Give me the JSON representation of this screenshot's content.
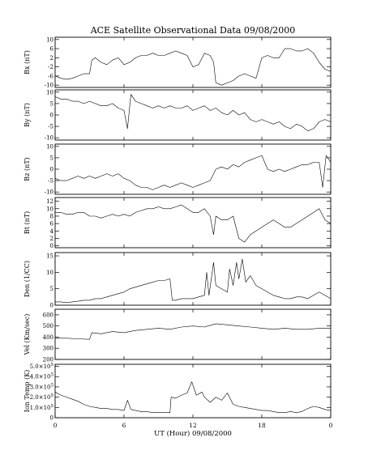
{
  "chart_data": {
    "title": "ACE Satellite Observational Data   09/08/2000",
    "xlabel": "UT (Hour)   09/08/2000",
    "x_ticks": [
      "0",
      "6",
      "12",
      "18",
      "0"
    ],
    "xlim": [
      0,
      24
    ],
    "grid": false,
    "panels": [
      {
        "ylabel": "Bx (nT)",
        "type": "line",
        "ylim": [
          -11,
          11
        ],
        "y_ticks": [
          {
            "v": 10,
            "t": "10"
          },
          {
            "v": 6,
            "t": "6"
          },
          {
            "v": 2,
            "t": "2"
          },
          {
            "v": -2,
            "t": "-2"
          },
          {
            "v": -6,
            "t": "-6"
          },
          {
            "v": -10,
            "t": "-10"
          }
        ],
        "x": [
          0,
          0.5,
          1,
          1.5,
          2,
          2.5,
          3,
          3.2,
          3.5,
          4,
          4.5,
          5,
          5.5,
          6,
          6.5,
          7,
          7.5,
          8,
          8.5,
          9,
          9.5,
          10,
          10.5,
          11,
          11.5,
          12,
          12.5,
          13,
          13.5,
          13.8,
          14,
          14.5,
          15,
          15.5,
          16,
          16.5,
          17,
          17.5,
          18,
          18.5,
          19,
          19.5,
          20,
          20.5,
          21,
          21.5,
          22,
          22.5,
          23,
          23.5,
          24
        ],
        "y": [
          -6,
          -7,
          -7.5,
          -7,
          -6,
          -5,
          -5,
          1,
          2,
          0,
          -1,
          1,
          2,
          -1,
          0,
          2,
          3,
          3,
          4,
          3,
          3,
          4,
          5,
          4,
          3,
          -2,
          -1,
          4,
          3,
          0,
          -9,
          -10,
          -9,
          -8,
          -6,
          -5,
          -6,
          -7,
          2,
          3,
          2,
          2,
          6,
          6,
          5,
          5,
          6,
          4,
          0,
          -3,
          -4
        ]
      },
      {
        "ylabel": "By (nT)",
        "type": "line",
        "ylim": [
          -11,
          11
        ],
        "y_ticks": [
          {
            "v": 10,
            "t": "10"
          },
          {
            "v": 5,
            "t": "5"
          },
          {
            "v": 0,
            "t": "0"
          },
          {
            "v": -5,
            "t": "-5"
          },
          {
            "v": -10,
            "t": "-10"
          }
        ],
        "x": [
          0,
          0.5,
          1,
          1.5,
          2,
          2.5,
          3,
          3.5,
          4,
          4.5,
          5,
          5.5,
          6,
          6.3,
          6.6,
          7,
          7.5,
          8,
          8.5,
          9,
          9.5,
          10,
          10.5,
          11,
          11.5,
          12,
          12.5,
          13,
          13.5,
          14,
          14.5,
          15,
          15.5,
          16,
          16.5,
          17,
          17.5,
          18,
          18.5,
          19,
          19.5,
          20,
          20.5,
          21,
          21.5,
          22,
          22.5,
          23,
          23.5,
          24
        ],
        "y": [
          8,
          7,
          7,
          6,
          6,
          5,
          6,
          5,
          4,
          4,
          5,
          3,
          2,
          -6,
          9,
          6,
          5,
          4,
          3,
          4,
          3,
          4,
          3,
          3,
          4,
          2,
          3,
          4,
          2,
          3,
          1,
          0,
          2,
          0,
          1,
          -2,
          -3,
          -2,
          -3,
          -4,
          -3,
          -5,
          -6,
          -4,
          -5,
          -7,
          -6,
          -3,
          -2,
          -3
        ]
      },
      {
        "ylabel": "Bz (nT)",
        "type": "line",
        "ylim": [
          -11,
          11
        ],
        "y_ticks": [
          {
            "v": 10,
            "t": "10"
          },
          {
            "v": 5,
            "t": "5"
          },
          {
            "v": 0,
            "t": "0"
          },
          {
            "v": -5,
            "t": "-5"
          },
          {
            "v": -10,
            "t": "-10"
          }
        ],
        "x": [
          0,
          0.5,
          1,
          1.5,
          2,
          2.5,
          3,
          3.5,
          4,
          4.5,
          5,
          5.5,
          6,
          6.5,
          7,
          7.5,
          8,
          8.5,
          9,
          9.5,
          10,
          10.5,
          11,
          11.5,
          12,
          12.5,
          13,
          13.5,
          14,
          14.5,
          15,
          15.5,
          16,
          16.5,
          17,
          17.5,
          18,
          18.5,
          19,
          19.5,
          20,
          20.5,
          21,
          21.5,
          22,
          22.5,
          23,
          23.3,
          23.6,
          24
        ],
        "y": [
          -4,
          -5,
          -5,
          -4,
          -3,
          -4,
          -3,
          -4,
          -3,
          -2,
          -3,
          -2,
          -4,
          -5,
          -7,
          -8,
          -8,
          -9,
          -8,
          -7,
          -8,
          -7,
          -6,
          -7,
          -8,
          -7,
          -6,
          -5,
          0,
          1,
          0,
          2,
          1,
          3,
          4,
          5,
          6,
          0,
          -1,
          0,
          -1,
          0,
          1,
          2,
          2,
          3,
          3,
          -8,
          6,
          3
        ]
      },
      {
        "ylabel": "Bt (nT)",
        "type": "line",
        "ylim": [
          -0.5,
          13
        ],
        "y_ticks": [
          {
            "v": 12,
            "t": "12"
          },
          {
            "v": 10,
            "t": "10"
          },
          {
            "v": 8,
            "t": "8"
          },
          {
            "v": 6,
            "t": "6"
          },
          {
            "v": 4,
            "t": "4"
          },
          {
            "v": 2,
            "t": "2"
          },
          {
            "v": 0,
            "t": "0"
          }
        ],
        "x": [
          0,
          0.5,
          1,
          1.5,
          2,
          2.5,
          3,
          3.5,
          4,
          4.5,
          5,
          5.5,
          6,
          6.5,
          7,
          7.5,
          8,
          8.5,
          9,
          9.5,
          10,
          10.5,
          11,
          11.5,
          12,
          12.5,
          13,
          13.5,
          13.8,
          14,
          14.5,
          15,
          15.5,
          16,
          16.5,
          17,
          17.5,
          18,
          18.5,
          19,
          19.5,
          20,
          20.5,
          21,
          21.5,
          22,
          22.5,
          23,
          23.5,
          24
        ],
        "y": [
          9,
          9,
          8.5,
          8.5,
          9,
          9,
          8,
          8,
          7.5,
          8,
          8.5,
          8,
          8.5,
          8,
          9,
          9.5,
          10,
          10,
          10.5,
          10,
          10,
          10.5,
          11,
          10,
          9,
          9,
          10,
          8,
          3,
          8,
          7,
          7,
          8,
          2,
          1,
          3,
          4,
          5,
          6,
          7,
          6,
          5,
          5,
          6,
          7,
          8,
          9,
          10,
          7,
          6
        ]
      },
      {
        "ylabel": "Den (1/CC)",
        "type": "line",
        "ylim": [
          0,
          16
        ],
        "y_ticks": [
          {
            "v": 15,
            "t": "15"
          },
          {
            "v": 10,
            "t": "10"
          },
          {
            "v": 5,
            "t": "5"
          },
          {
            "v": 0,
            "t": "0"
          }
        ],
        "x": [
          0,
          0.5,
          1,
          1.5,
          2,
          2.5,
          3,
          3.5,
          4,
          4.5,
          5,
          5.5,
          6,
          6.5,
          7,
          7.5,
          8,
          8.5,
          9,
          9.5,
          10,
          10.2,
          10.5,
          11,
          11.5,
          12,
          12.5,
          13,
          13.2,
          13.4,
          13.8,
          14,
          14.5,
          15,
          15.2,
          15.5,
          15.8,
          16,
          16.3,
          16.6,
          17,
          17.5,
          18,
          18.5,
          19,
          19.5,
          20,
          20.5,
          21,
          21.5,
          22,
          22.5,
          23,
          23.5,
          24
        ],
        "y": [
          1,
          1,
          0.8,
          1,
          1.2,
          1.5,
          1.5,
          2,
          2,
          2.5,
          3,
          3.5,
          4,
          5,
          5.5,
          6,
          6.5,
          7,
          7.5,
          7.5,
          8,
          1.5,
          1.5,
          2,
          2,
          2,
          2.5,
          3,
          10,
          3,
          13,
          6,
          5,
          4,
          11,
          6,
          13,
          8,
          14,
          7,
          9,
          6,
          5,
          4,
          3,
          2.5,
          2,
          2,
          2.5,
          2.5,
          2,
          3,
          4,
          3,
          2
        ]
      },
      {
        "ylabel": "Vel (Km/sec)",
        "type": "line",
        "ylim": [
          200,
          650
        ],
        "y_ticks": [
          {
            "v": 600,
            "t": "600"
          },
          {
            "v": 500,
            "t": "500"
          },
          {
            "v": 400,
            "t": "400"
          },
          {
            "v": 300,
            "t": "300"
          },
          {
            "v": 200,
            "t": "200"
          }
        ],
        "x": [
          0,
          1,
          2,
          3,
          3.2,
          4,
          5,
          6,
          7,
          8,
          9,
          10,
          11,
          12,
          13,
          14,
          15,
          16,
          17,
          18,
          19,
          20,
          21,
          22,
          23,
          24
        ],
        "y": [
          390,
          390,
          385,
          380,
          440,
          430,
          450,
          440,
          460,
          470,
          480,
          470,
          490,
          500,
          490,
          520,
          510,
          500,
          490,
          480,
          470,
          480,
          470,
          470,
          480,
          480
        ]
      },
      {
        "ylabel": "Ion Temp (K)",
        "type": "line",
        "ylim": [
          0,
          520000
        ],
        "y_ticks": [
          {
            "v": 500000,
            "t": "5.0×10",
            "e": "5"
          },
          {
            "v": 400000,
            "t": "4.0×10",
            "e": "5"
          },
          {
            "v": 300000,
            "t": "3.0×10",
            "e": "5"
          },
          {
            "v": 200000,
            "t": "2.0×10",
            "e": "5"
          },
          {
            "v": 100000,
            "t": "1.0×10",
            "e": "5"
          },
          {
            "v": 0,
            "t": "0"
          }
        ],
        "x": [
          0,
          0.5,
          1,
          1.5,
          2,
          2.5,
          3,
          3.5,
          4,
          4.5,
          5,
          5.5,
          6,
          6.3,
          6.6,
          7,
          7.5,
          8,
          8.5,
          9,
          9.5,
          10,
          10.1,
          10.5,
          11,
          11.5,
          11.9,
          12.3,
          12.8,
          13,
          13.5,
          14,
          14.5,
          15,
          15.5,
          16,
          16.5,
          17,
          17.5,
          18,
          18.5,
          19,
          19.5,
          20,
          20.5,
          21,
          21.5,
          22,
          22.5,
          23,
          23.5,
          24
        ],
        "y": [
          250000,
          220000,
          200000,
          180000,
          160000,
          130000,
          110000,
          100000,
          90000,
          90000,
          80000,
          80000,
          70000,
          170000,
          80000,
          70000,
          60000,
          60000,
          50000,
          50000,
          50000,
          50000,
          200000,
          190000,
          220000,
          240000,
          350000,
          220000,
          250000,
          200000,
          150000,
          200000,
          170000,
          240000,
          130000,
          110000,
          100000,
          90000,
          80000,
          70000,
          70000,
          60000,
          50000,
          50000,
          60000,
          50000,
          60000,
          90000,
          110000,
          100000,
          80000,
          70000
        ]
      }
    ]
  }
}
